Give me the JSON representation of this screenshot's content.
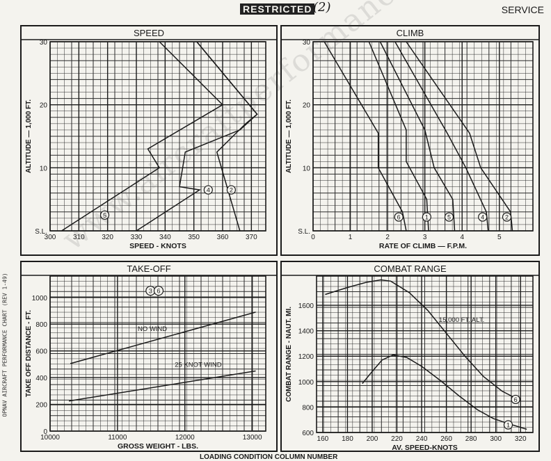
{
  "header": {
    "restricted": "RESTRICTED",
    "page_number": "(2)",
    "service": "SERVICE"
  },
  "side_note": "OPNAV AIRCRAFT PERFORMANCE CHART (REV 1-49)",
  "bottom_note": "LOADING CONDITION COLUMN NUMBER",
  "watermark": "www.aircraftperformance.org",
  "colors": {
    "ink": "#1a1a1a",
    "paper": "#f4f3ee",
    "grid": "#2a2a2a"
  },
  "chart_data": [
    {
      "id": "speed",
      "type": "line",
      "title": "SPEED",
      "xlabel": "SPEED - KNOTS",
      "ylabel": "ALTITUDE — 1,000 FT.",
      "xlim": [
        300,
        375
      ],
      "ylim": [
        0,
        30
      ],
      "x_ticks": [
        300,
        310,
        320,
        330,
        340,
        350,
        360,
        370
      ],
      "y_ticks": [
        {
          "v": 0,
          "label": "S.L."
        },
        {
          "v": 10,
          "label": "10"
        },
        {
          "v": 20,
          "label": "20"
        },
        {
          "v": 30,
          "label": "30"
        }
      ],
      "series": [
        {
          "name": "5",
          "points": [
            [
              304,
              0
            ],
            [
              338,
              10
            ],
            [
              334,
              13
            ],
            [
              360,
              20
            ],
            [
              338,
              30
            ]
          ],
          "marker": [
            319,
            2.5
          ]
        },
        {
          "name": "4",
          "points": [
            [
              330,
              0
            ],
            [
              352,
              6.5
            ],
            [
              345,
              7
            ],
            [
              347,
              12.5
            ],
            [
              366,
              16
            ],
            [
              372,
              18.5
            ],
            [
              351,
              30
            ]
          ],
          "marker": [
            355,
            6.5
          ]
        },
        {
          "name": "2",
          "points": [
            [
              366,
              0
            ],
            [
              358,
              12.5
            ],
            [
              368,
              17
            ],
            [
              372,
              18.5
            ],
            [
              351,
              30
            ]
          ],
          "marker": [
            363,
            6.5
          ]
        }
      ]
    },
    {
      "id": "climb",
      "type": "line",
      "title": "CLIMB",
      "xlabel": "RATE OF CLIMB — F.P.M.",
      "ylabel": "ALTITUDE — 1,000 FT.",
      "xlim": [
        0,
        5.9
      ],
      "ylim": [
        0,
        30
      ],
      "x_ticks": [
        {
          "v": 0,
          "label": "0"
        },
        {
          "v": 1,
          "label": "1"
        },
        {
          "v": 2,
          "label": "2"
        },
        {
          "v": 3,
          "label": "3"
        },
        {
          "v": 4,
          "label": "4"
        },
        {
          "v": 5,
          "label": "5"
        }
      ],
      "y_ticks": [
        {
          "v": 0,
          "label": "S.L."
        },
        {
          "v": 10,
          "label": "10"
        },
        {
          "v": 20,
          "label": "20"
        },
        {
          "v": 30,
          "label": "30"
        }
      ],
      "series": [
        {
          "name": "6",
          "points": [
            [
              2.5,
              0
            ],
            [
              2.4,
              3
            ],
            [
              1.75,
              10
            ],
            [
              1.75,
              15.5
            ],
            [
              0.3,
              30
            ]
          ],
          "marker": [
            2.3,
            2.2
          ]
        },
        {
          "name": "1",
          "points": [
            [
              3.1,
              0
            ],
            [
              3.05,
              5
            ],
            [
              2.5,
              11
            ],
            [
              2.5,
              16
            ],
            [
              1.5,
              30
            ]
          ],
          "marker": [
            3.05,
            2.2
          ]
        },
        {
          "name": "5",
          "points": [
            [
              3.8,
              0
            ],
            [
              3.75,
              5
            ],
            [
              3.25,
              10
            ],
            [
              3.0,
              16
            ],
            [
              1.8,
              30
            ]
          ],
          "marker": [
            3.65,
            2.2
          ]
        },
        {
          "name": "4",
          "points": [
            [
              4.7,
              0
            ],
            [
              4.65,
              3
            ],
            [
              4.1,
              10
            ],
            [
              3.6,
              15.5
            ],
            [
              2.2,
              30
            ]
          ],
          "marker": [
            4.55,
            2.2
          ]
        },
        {
          "name": "2",
          "points": [
            [
              5.35,
              0
            ],
            [
              5.3,
              3
            ],
            [
              4.5,
              10
            ],
            [
              4.2,
              15.5
            ],
            [
              2.5,
              30
            ]
          ],
          "marker": [
            5.2,
            2.2
          ]
        }
      ]
    },
    {
      "id": "takeoff",
      "type": "line",
      "title": "TAKE-OFF",
      "xlabel": "GROSS WEIGHT - LBS.",
      "ylabel": "TAKE OFF DISTANCE - FT.",
      "xlim": [
        10000,
        13200
      ],
      "ylim": [
        0,
        1160
      ],
      "x_ticks": [
        {
          "v": 10000,
          "label": "10000"
        },
        {
          "v": 11000,
          "label": "11000"
        },
        {
          "v": 12000,
          "label": "12000"
        },
        {
          "v": 13000,
          "label": "13000"
        }
      ],
      "y_ticks": [
        {
          "v": 0,
          "label": "0"
        },
        {
          "v": 200,
          "label": "200"
        },
        {
          "v": 400,
          "label": "400"
        },
        {
          "v": 600,
          "label": "600"
        },
        {
          "v": 800,
          "label": "800"
        },
        {
          "v": 1000,
          "label": "1000"
        }
      ],
      "series": [
        {
          "name": "NO WIND",
          "points": [
            [
              10300,
              505
            ],
            [
              13050,
              890
            ]
          ],
          "label_at": [
            11300,
            750
          ]
        },
        {
          "name": "25 KNOT WIND",
          "points": [
            [
              10280,
              225
            ],
            [
              13050,
              450
            ]
          ],
          "label_at": [
            11850,
            480
          ]
        }
      ],
      "markers": [
        {
          "label": "3",
          "at": [
            11490,
            1050
          ]
        },
        {
          "label": "6",
          "at": [
            11610,
            1050
          ]
        }
      ]
    },
    {
      "id": "combat_range",
      "type": "line",
      "title": "COMBAT RANGE",
      "xlabel": "AV. SPEED-KNOTS",
      "ylabel": "COMBAT RANGE - NAUT. MI.",
      "xlim": [
        155,
        330
      ],
      "ylim": [
        600,
        1830
      ],
      "x_ticks": [
        160,
        180,
        200,
        220,
        240,
        260,
        280,
        300,
        320
      ],
      "y_ticks": [
        {
          "v": 600,
          "label": "600"
        },
        {
          "v": 800,
          "label": "800"
        },
        {
          "v": 1000,
          "label": "1000"
        },
        {
          "v": 1200,
          "label": "1200"
        },
        {
          "v": 1400,
          "label": "1400"
        },
        {
          "v": 1600,
          "label": "1600"
        }
      ],
      "annotation": {
        "text": "15,000 FT. ALT.",
        "at": [
          254,
          1470
        ]
      },
      "series": [
        {
          "name": "6",
          "points": [
            [
              162,
              1685
            ],
            [
              180,
              1740
            ],
            [
              195,
              1780
            ],
            [
              207,
              1800
            ],
            [
              215,
              1790
            ],
            [
              230,
              1700
            ],
            [
              245,
              1560
            ],
            [
              260,
              1380
            ],
            [
              275,
              1200
            ],
            [
              290,
              1040
            ],
            [
              305,
              925
            ],
            [
              318,
              860
            ]
          ],
          "marker": [
            316,
            860
          ]
        },
        {
          "name": "1",
          "points": [
            [
              192,
              985
            ],
            [
              200,
              1080
            ],
            [
              208,
              1170
            ],
            [
              217,
              1210
            ],
            [
              228,
              1190
            ],
            [
              240,
              1120
            ],
            [
              255,
              1010
            ],
            [
              270,
              890
            ],
            [
              285,
              780
            ],
            [
              298,
              710
            ],
            [
              310,
              670
            ],
            [
              325,
              625
            ]
          ],
          "marker": [
            310,
            660
          ]
        }
      ]
    }
  ]
}
